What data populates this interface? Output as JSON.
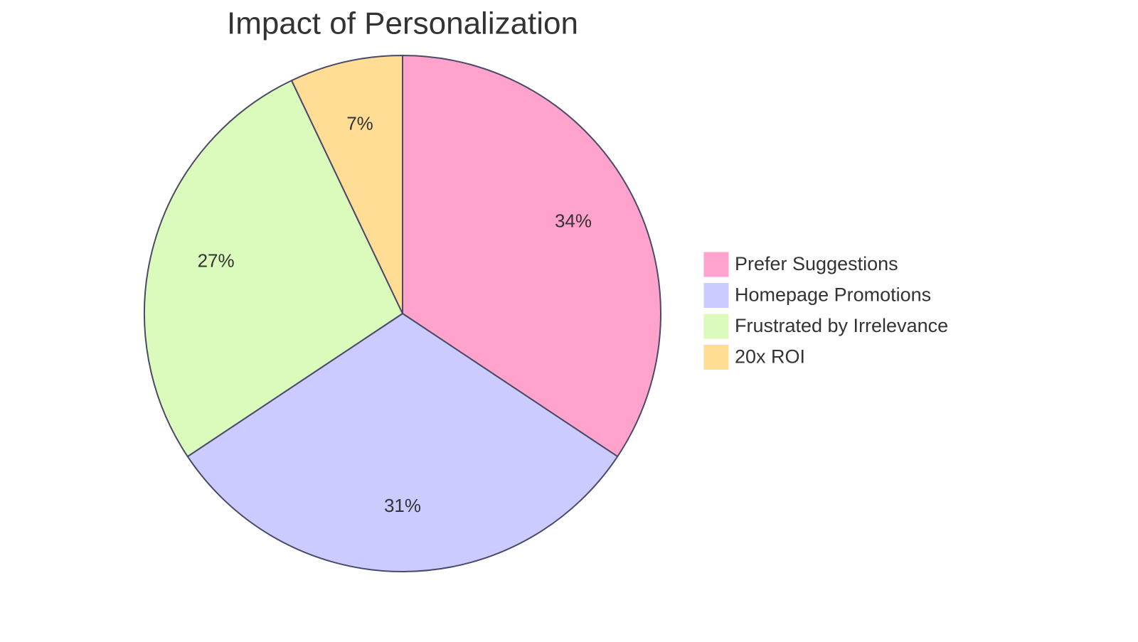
{
  "chart_data": {
    "type": "pie",
    "title": "Impact of Personalization",
    "categories": [
      "Prefer Suggestions",
      "Homepage Promotions",
      "Frustrated by Irrelevance",
      "20x ROI"
    ],
    "values": [
      34,
      31,
      27,
      7
    ],
    "value_labels": [
      "34%",
      "31%",
      "27%",
      "7%"
    ],
    "colors": [
      "#FFA3CD",
      "#CBCBFF",
      "#DAFBBC",
      "#FFDD94"
    ]
  }
}
